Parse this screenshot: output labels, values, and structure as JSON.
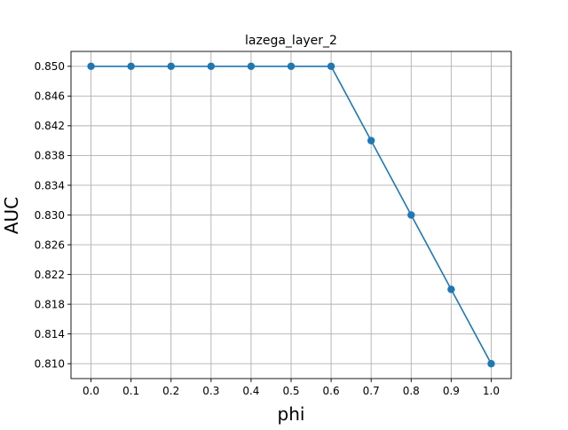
{
  "chart_data": {
    "type": "line",
    "title": "lazega_layer_2",
    "xlabel": "phi",
    "ylabel": "AUC",
    "x": [
      0.0,
      0.1,
      0.2,
      0.3,
      0.4,
      0.5,
      0.6,
      0.7,
      0.8,
      0.9,
      1.0
    ],
    "series": [
      {
        "values": [
          0.85,
          0.85,
          0.85,
          0.85,
          0.85,
          0.85,
          0.85,
          0.84,
          0.83,
          0.82,
          0.81
        ],
        "color": "#1f77b4",
        "marker": "circle"
      }
    ],
    "xticks": [
      "0.0",
      "0.1",
      "0.2",
      "0.3",
      "0.4",
      "0.5",
      "0.6",
      "0.7",
      "0.8",
      "0.9",
      "1.0"
    ],
    "yticks": [
      "0.810",
      "0.814",
      "0.818",
      "0.822",
      "0.826",
      "0.830",
      "0.834",
      "0.838",
      "0.842",
      "0.846",
      "0.850"
    ],
    "xlim": [
      -0.05,
      1.05
    ],
    "ylim": [
      0.808,
      0.852
    ],
    "grid": true,
    "legend": false
  }
}
